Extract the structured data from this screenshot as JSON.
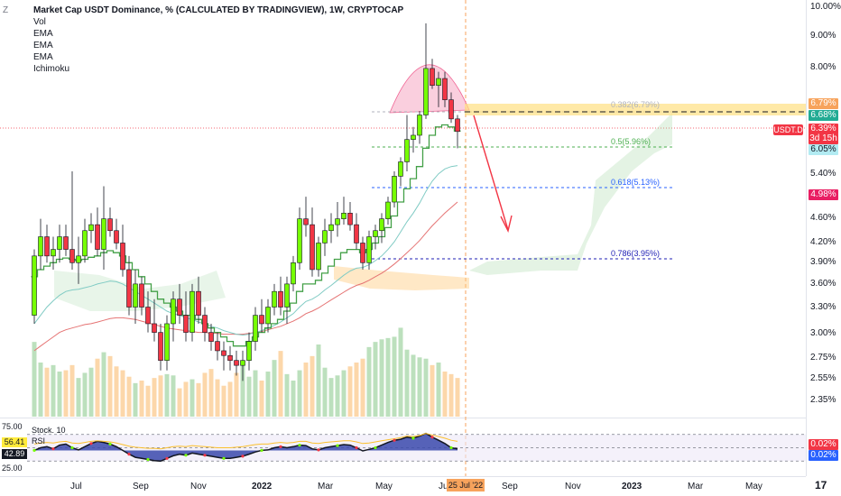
{
  "legend": {
    "title": "Market Cap USDT Dominance, % (CALCULATED BY TRADINGVIEW), 1W, CRYPTOCAP",
    "indicators": [
      "Vol",
      "EMA",
      "EMA",
      "EMA",
      "Ichimoku"
    ]
  },
  "zoom_label": "Z",
  "y_axis": {
    "labels": [
      "10.00%",
      "9.00%",
      "8.00%",
      "6.79%",
      "6.68%",
      "6.39%",
      "3d 15h",
      "6.05%",
      "5.40%",
      "4.98%",
      "4.60%",
      "4.20%",
      "3.90%",
      "3.60%",
      "3.30%",
      "3.00%",
      "2.75%",
      "2.55%",
      "2.35%"
    ],
    "tags": [
      {
        "text": "6.79%",
        "color": "#f7a35c"
      },
      {
        "text": "6.68%",
        "color": "#22ab94"
      },
      {
        "text": "6.39%",
        "color": "#f23645"
      },
      {
        "text": "3d 15h",
        "color": "#f23645"
      },
      {
        "text": "6.05%",
        "color": "#b2ebf2"
      },
      {
        "text": "4.98%",
        "color": "#e91e63"
      }
    ],
    "symbol": "USDT.D"
  },
  "x_axis": {
    "labels": [
      "Jul",
      "Sep",
      "Nov",
      "2022",
      "Mar",
      "May",
      "Ju",
      "Sep",
      "Nov",
      "2023",
      "Mar",
      "May"
    ],
    "cursor_date": "25 Jul '22"
  },
  "fib_levels": [
    {
      "label": "0.382(6.79%)",
      "color": "#b0b3bc"
    },
    {
      "label": "0.5(5.96%)",
      "color": "#4caf50"
    },
    {
      "label": "0.618(5.13%)",
      "color": "#2962ff"
    },
    {
      "label": "0.786(3.95%)",
      "color": "#1e1eb4"
    }
  ],
  "oscillator": {
    "name_stoch": "Stock. 10",
    "name_rsi": "RSI",
    "left_labels": [
      "75.00",
      "25.00"
    ],
    "left_tags": [
      {
        "text": "56.41",
        "color": "#ffeb3b",
        "textColor": "#131722"
      },
      {
        "text": "42.89",
        "color": "#131722",
        "textColor": "#ffffff"
      }
    ],
    "right_tags": [
      {
        "text": "0.02%",
        "color": "#f23645"
      },
      {
        "text": "0.02%",
        "color": "#2962ff"
      }
    ]
  },
  "logo": "17",
  "chart_data": {
    "type": "candlestick",
    "timeframe": "1W",
    "ylim": [
      2.2,
      10.2
    ],
    "y_scale": "log",
    "candles": [
      [
        3.2,
        4.1,
        3.1,
        4.0
      ],
      [
        4.0,
        4.6,
        3.8,
        4.3
      ],
      [
        4.3,
        4.5,
        3.9,
        4.0
      ],
      [
        4.0,
        4.3,
        3.8,
        4.1
      ],
      [
        4.1,
        4.5,
        3.9,
        4.3
      ],
      [
        4.3,
        4.5,
        4.0,
        4.1
      ],
      [
        4.1,
        5.5,
        3.8,
        3.9
      ],
      [
        3.9,
        4.3,
        3.6,
        4.0
      ],
      [
        4.0,
        4.6,
        3.9,
        4.4
      ],
      [
        4.4,
        4.7,
        4.2,
        4.5
      ],
      [
        4.5,
        4.8,
        4.0,
        4.1
      ],
      [
        4.1,
        5.2,
        3.8,
        4.6
      ],
      [
        4.6,
        4.8,
        4.3,
        4.4
      ],
      [
        4.4,
        4.6,
        4.1,
        4.2
      ],
      [
        4.2,
        4.5,
        3.7,
        3.8
      ],
      [
        3.8,
        4.0,
        3.2,
        3.3
      ],
      [
        3.3,
        3.8,
        3.1,
        3.6
      ],
      [
        3.6,
        3.7,
        3.2,
        3.3
      ],
      [
        3.3,
        3.5,
        3.0,
        3.1
      ],
      [
        3.1,
        3.4,
        2.9,
        3.0
      ],
      [
        3.0,
        3.1,
        2.6,
        2.7
      ],
      [
        2.7,
        3.2,
        2.6,
        3.1
      ],
      [
        3.1,
        3.5,
        2.9,
        3.4
      ],
      [
        3.4,
        3.6,
        3.1,
        3.2
      ],
      [
        3.2,
        3.5,
        2.9,
        3.0
      ],
      [
        3.0,
        3.6,
        2.9,
        3.5
      ],
      [
        3.5,
        3.7,
        3.1,
        3.2
      ],
      [
        3.2,
        3.3,
        2.9,
        3.0
      ],
      [
        3.0,
        3.1,
        2.8,
        2.9
      ],
      [
        2.9,
        3.0,
        2.7,
        2.8
      ],
      [
        2.8,
        2.9,
        2.6,
        2.75
      ],
      [
        2.75,
        2.85,
        2.6,
        2.7
      ],
      [
        2.7,
        2.8,
        2.55,
        2.65
      ],
      [
        2.65,
        2.8,
        2.5,
        2.7
      ],
      [
        2.7,
        3.0,
        2.6,
        2.9
      ],
      [
        2.9,
        3.3,
        2.8,
        3.2
      ],
      [
        3.2,
        3.4,
        3.0,
        3.1
      ],
      [
        3.1,
        3.4,
        3.0,
        3.3
      ],
      [
        3.3,
        3.6,
        3.2,
        3.5
      ],
      [
        3.5,
        3.7,
        3.2,
        3.3
      ],
      [
        3.3,
        3.7,
        3.1,
        3.6
      ],
      [
        3.6,
        4.0,
        3.5,
        3.9
      ],
      [
        3.9,
        4.8,
        3.8,
        4.6
      ],
      [
        4.6,
        5.0,
        4.3,
        4.5
      ],
      [
        4.5,
        4.8,
        3.7,
        3.8
      ],
      [
        3.8,
        4.3,
        3.7,
        4.2
      ],
      [
        4.2,
        4.6,
        4.0,
        4.4
      ],
      [
        4.4,
        4.7,
        4.2,
        4.5
      ],
      [
        4.5,
        4.9,
        4.3,
        4.6
      ],
      [
        4.6,
        5.0,
        4.5,
        4.7
      ],
      [
        4.7,
        4.9,
        4.4,
        4.5
      ],
      [
        4.5,
        4.7,
        4.1,
        4.2
      ],
      [
        4.2,
        4.3,
        3.8,
        3.9
      ],
      [
        3.9,
        4.4,
        3.8,
        4.3
      ],
      [
        4.3,
        4.5,
        4.1,
        4.4
      ],
      [
        4.4,
        4.7,
        4.2,
        4.6
      ],
      [
        4.6,
        5.0,
        4.5,
        4.9
      ],
      [
        4.9,
        5.5,
        4.8,
        5.4
      ],
      [
        5.4,
        5.8,
        5.2,
        5.7
      ],
      [
        5.7,
        6.8,
        5.5,
        6.2
      ],
      [
        6.2,
        6.5,
        5.9,
        6.3
      ],
      [
        6.3,
        6.9,
        6.1,
        6.8
      ],
      [
        6.8,
        9.6,
        6.7,
        8.1
      ],
      [
        8.1,
        8.4,
        7.5,
        7.6
      ],
      [
        7.6,
        8.0,
        7.0,
        7.8
      ],
      [
        7.8,
        8.0,
        7.0,
        7.2
      ],
      [
        7.2,
        7.4,
        6.6,
        6.7
      ],
      [
        6.7,
        6.8,
        6.0,
        6.39
      ]
    ],
    "volume": [
      58,
      42,
      38,
      40,
      35,
      36,
      40,
      30,
      34,
      38,
      45,
      50,
      47,
      39,
      36,
      31,
      26,
      28,
      24,
      30,
      32,
      33,
      32,
      22,
      27,
      29,
      26,
      34,
      37,
      29,
      24,
      27,
      34,
      40,
      31,
      36,
      28,
      35,
      44,
      51,
      33,
      28,
      36,
      42,
      47,
      56,
      38,
      30,
      32,
      36,
      39,
      42,
      45,
      54,
      58,
      60,
      61,
      62,
      69,
      52,
      48,
      46,
      45,
      40,
      42,
      35,
      33,
      30
    ],
    "ema_fast": [
      3.7,
      3.8,
      3.85,
      3.9,
      3.95,
      3.97,
      3.95,
      3.93,
      3.95,
      3.98,
      4.0,
      4.05,
      4.08,
      4.05,
      4.0,
      3.9,
      3.8,
      3.7,
      3.6,
      3.5,
      3.4,
      3.35,
      3.3,
      3.25,
      3.2,
      3.2,
      3.15,
      3.1,
      3.05,
      3.0,
      2.95,
      2.9,
      2.85,
      2.85,
      2.9,
      2.95,
      3.0,
      3.05,
      3.1,
      3.15,
      3.25,
      3.35,
      3.5,
      3.6,
      3.6,
      3.65,
      3.75,
      3.85,
      3.95,
      4.05,
      4.1,
      4.1,
      4.05,
      4.1,
      4.2,
      4.3,
      4.45,
      4.65,
      4.9,
      5.15,
      5.35,
      5.6,
      6.0,
      6.3,
      6.5,
      6.55,
      6.5,
      6.4
    ],
    "ema_mid": [
      3.1,
      3.2,
      3.3,
      3.38,
      3.45,
      3.5,
      3.52,
      3.53,
      3.55,
      3.57,
      3.6,
      3.62,
      3.64,
      3.63,
      3.6,
      3.55,
      3.5,
      3.45,
      3.4,
      3.35,
      3.3,
      3.25,
      3.22,
      3.2,
      3.17,
      3.15,
      3.12,
      3.1,
      3.07,
      3.05,
      3.02,
      3.0,
      2.98,
      2.97,
      2.98,
      3.0,
      3.02,
      3.05,
      3.08,
      3.12,
      3.17,
      3.22,
      3.3,
      3.37,
      3.4,
      3.45,
      3.52,
      3.58,
      3.65,
      3.72,
      3.78,
      3.82,
      3.83,
      3.87,
      3.93,
      4.0,
      4.1,
      4.22,
      4.38,
      4.55,
      4.7,
      4.88,
      5.1,
      5.3,
      5.45,
      5.55,
      5.6,
      5.62
    ],
    "ema_slow": [
      2.8,
      2.85,
      2.9,
      2.95,
      3.0,
      3.03,
      3.05,
      3.07,
      3.09,
      3.1,
      3.12,
      3.14,
      3.16,
      3.17,
      3.17,
      3.16,
      3.15,
      3.13,
      3.11,
      3.09,
      3.07,
      3.05,
      3.04,
      3.03,
      3.02,
      3.01,
      3.0,
      3.0,
      2.99,
      2.99,
      2.98,
      2.98,
      2.98,
      2.98,
      2.99,
      3.0,
      3.01,
      3.03,
      3.05,
      3.07,
      3.1,
      3.13,
      3.17,
      3.22,
      3.25,
      3.29,
      3.34,
      3.39,
      3.44,
      3.49,
      3.54,
      3.58,
      3.61,
      3.65,
      3.7,
      3.75,
      3.81,
      3.88,
      3.96,
      4.05,
      4.14,
      4.24,
      4.36,
      4.48,
      4.59,
      4.7,
      4.8,
      4.9
    ],
    "stoch": [
      45,
      50,
      52,
      48,
      55,
      57,
      50,
      46,
      52,
      58,
      62,
      60,
      57,
      52,
      45,
      38,
      32,
      30,
      28,
      26,
      25,
      30,
      35,
      38,
      36,
      40,
      38,
      36,
      34,
      32,
      30,
      30,
      32,
      34,
      38,
      42,
      45,
      46,
      50,
      52,
      50,
      52,
      55,
      54,
      48,
      46,
      50,
      52,
      54,
      56,
      55,
      50,
      44,
      47,
      50,
      55,
      60,
      64,
      66,
      70,
      68,
      72,
      77,
      70,
      64,
      58,
      50,
      48
    ],
    "rsi": [
      42,
      44,
      45,
      44,
      46,
      47,
      44,
      43,
      45,
      47,
      48,
      47,
      46,
      44,
      41,
      38,
      36,
      35,
      34,
      34,
      33,
      35,
      37,
      38,
      37,
      39,
      38,
      37,
      36,
      35,
      35,
      35,
      36,
      37,
      39,
      41,
      42,
      42,
      44,
      45,
      44,
      45,
      47,
      47,
      44,
      43,
      45,
      46,
      47,
      48,
      48,
      46,
      43,
      44,
      46,
      48,
      50,
      52,
      54,
      57,
      56,
      58,
      62,
      59,
      56,
      53,
      49,
      47
    ]
  }
}
